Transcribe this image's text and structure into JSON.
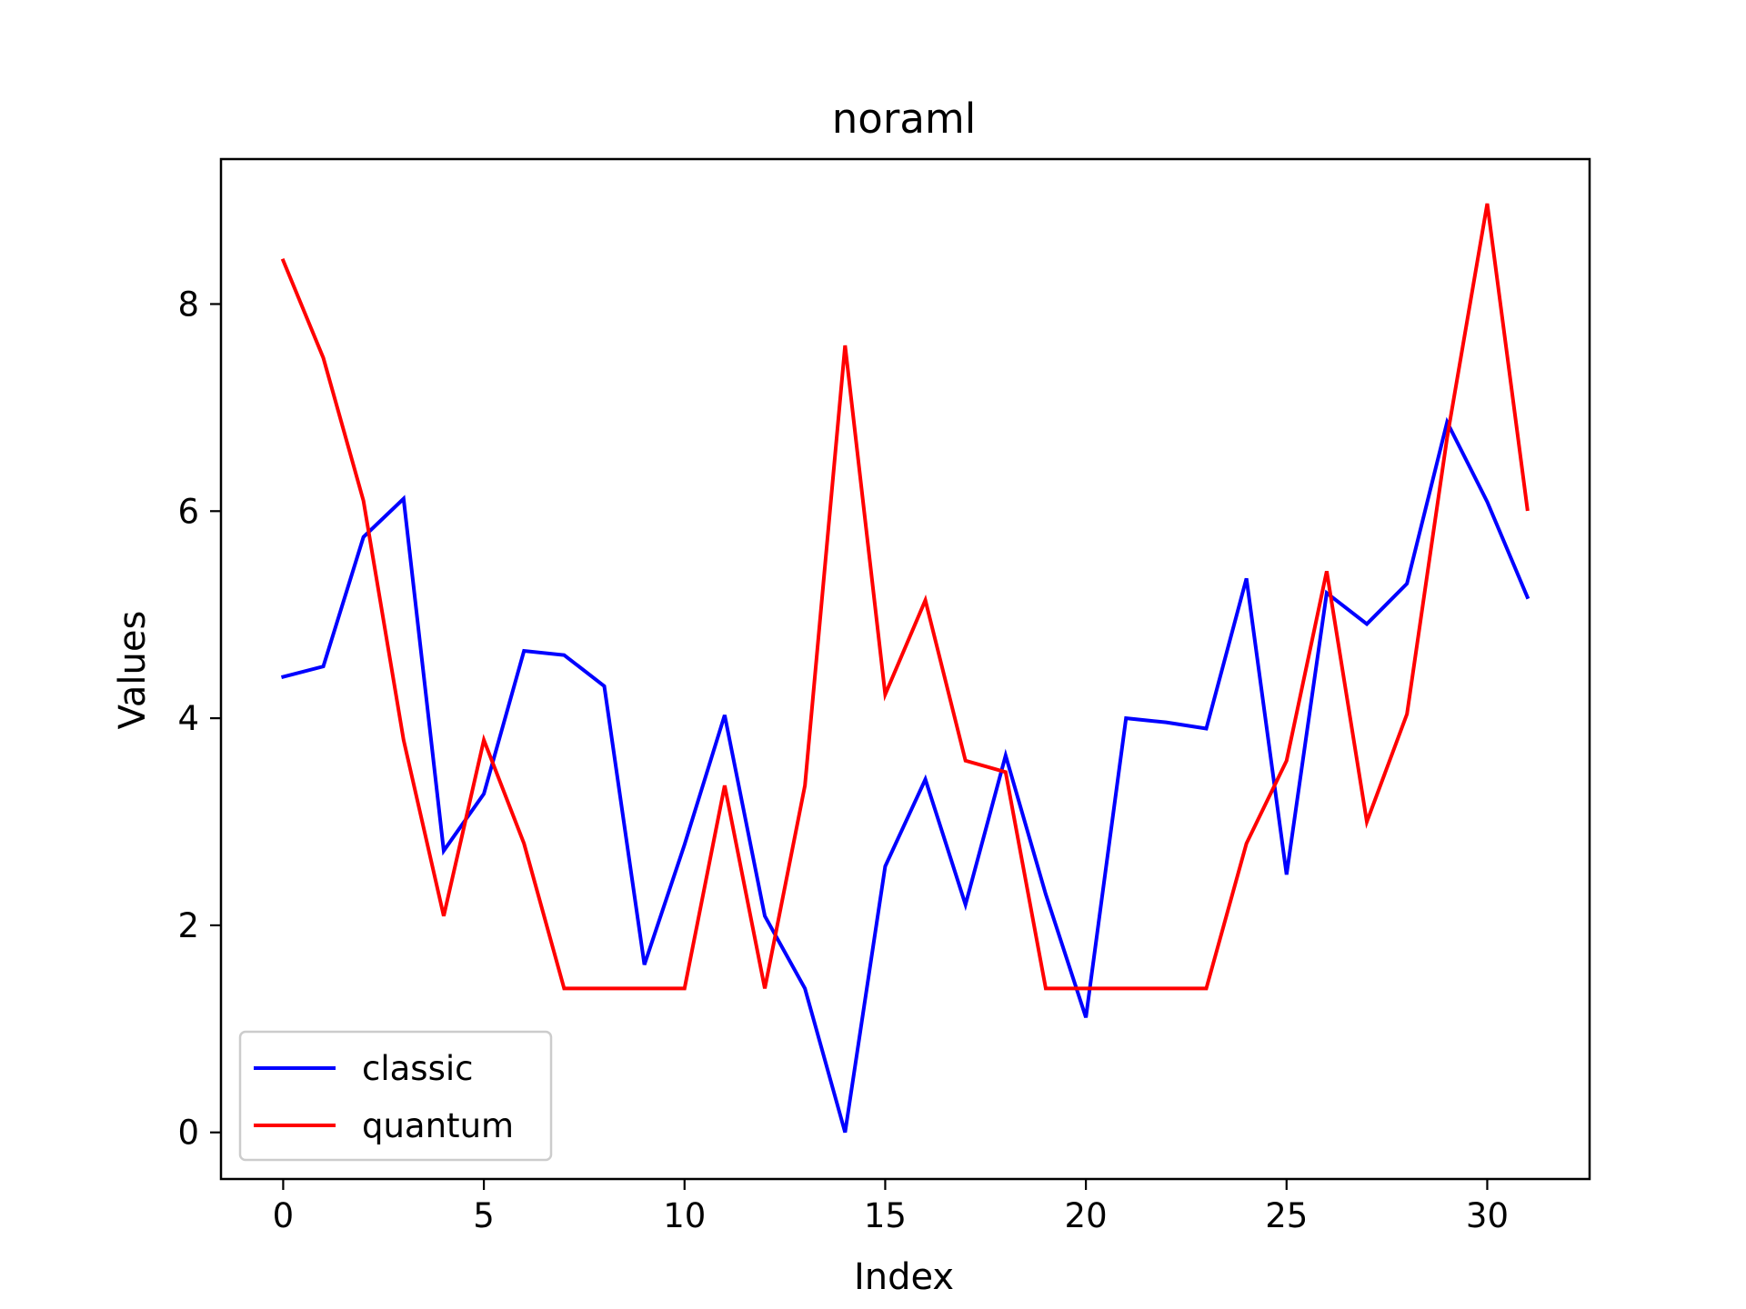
{
  "chart_data": {
    "type": "line",
    "title": "noraml",
    "xlabel": "Index",
    "ylabel": "Values",
    "xlim": [
      -1.55,
      32.55
    ],
    "ylim": [
      -0.45,
      9.4
    ],
    "xticks": [
      0,
      5,
      10,
      15,
      20,
      25,
      30
    ],
    "yticks": [
      0,
      2,
      4,
      6,
      8
    ],
    "grid": false,
    "legend_position": "lower-left",
    "x": [
      0,
      1,
      2,
      3,
      4,
      5,
      6,
      7,
      8,
      9,
      10,
      11,
      12,
      13,
      14,
      15,
      16,
      17,
      18,
      19,
      20,
      21,
      22,
      23,
      24,
      25,
      26,
      27,
      28,
      29,
      30,
      31
    ],
    "series": [
      {
        "name": "classic",
        "color": "#0000ff",
        "values": [
          4.4,
          4.5,
          5.75,
          6.12,
          2.72,
          3.27,
          4.65,
          4.61,
          4.31,
          1.62,
          2.78,
          4.03,
          2.09,
          1.39,
          0.0,
          2.57,
          3.41,
          2.2,
          3.64,
          2.3,
          1.11,
          4.0,
          3.96,
          3.9,
          5.35,
          2.49,
          5.21,
          4.91,
          5.3,
          6.86,
          6.09,
          5.17
        ]
      },
      {
        "name": "quantum",
        "color": "#ff0000",
        "values": [
          8.42,
          7.48,
          6.1,
          3.79,
          2.09,
          3.79,
          2.79,
          1.39,
          1.39,
          1.39,
          1.39,
          3.35,
          1.39,
          3.35,
          7.6,
          4.23,
          5.14,
          3.59,
          3.48,
          1.39,
          1.39,
          1.39,
          1.39,
          1.39,
          2.79,
          3.59,
          5.42,
          3.0,
          4.04,
          6.71,
          8.97,
          6.02
        ]
      }
    ]
  }
}
